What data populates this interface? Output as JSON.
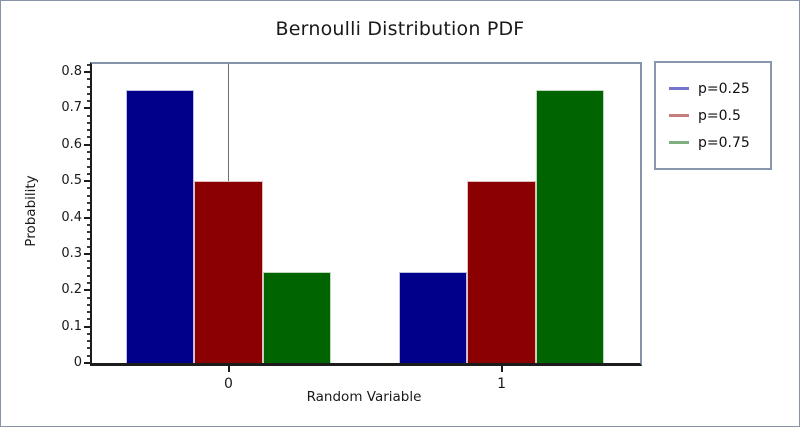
{
  "title": "Bernoulli Distribution PDF",
  "axes": {
    "ylabel": "Probability",
    "xlabel": "Random Variable"
  },
  "colors": {
    "frame_border": "#8794a6",
    "plot_spine_dark": "#1c1c1c",
    "plot_spine_light": "#8593a8",
    "zero_line": "#6f6f6f",
    "legend_border": "#8897ab"
  },
  "chart_data": {
    "type": "bar",
    "title": "Bernoulli Distribution PDF",
    "xlabel": "Random Variable",
    "ylabel": "Probability",
    "categories": [
      0,
      1
    ],
    "x_tick_labels": [
      "0",
      "1"
    ],
    "series": [
      {
        "name": "p=0.25",
        "values": [
          0.75,
          0.25
        ],
        "color": "#00008B",
        "legend_color": "#7575cb"
      },
      {
        "name": "p=0.5",
        "values": [
          0.5,
          0.5
        ],
        "color": "#8B0000",
        "legend_color": "#c47e7e"
      },
      {
        "name": "p=0.75",
        "values": [
          0.25,
          0.75
        ],
        "color": "#006400",
        "legend_color": "#7fae7f"
      }
    ],
    "bar_width": 0.25,
    "group_offsets": [
      -0.25,
      0,
      0.25
    ],
    "xlim": [
      -0.5,
      1.507
    ],
    "ylim": [
      0,
      0.822
    ],
    "y_major_step": 0.1,
    "y_minor_step": 0.02,
    "y_tick_labels": [
      "0",
      "0.1",
      "0.2",
      "0.3",
      "0.4",
      "0.5",
      "0.6",
      "0.7",
      "0.8"
    ],
    "grid": false,
    "zero_vline": true,
    "legend_position": "outside-right"
  }
}
